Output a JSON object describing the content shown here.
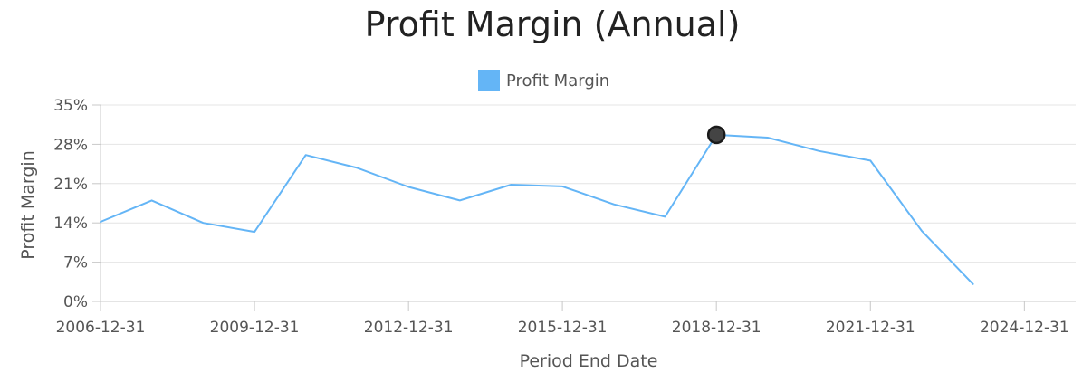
{
  "chart_data": {
    "type": "line",
    "title": "Profit Margin (Annual)",
    "xlabel": "Period End Date",
    "ylabel": "Profit Margin",
    "x_ticks": [
      "2006-12-31",
      "2009-12-31",
      "2012-12-31",
      "2015-12-31",
      "2018-12-31",
      "2021-12-31",
      "2024-12-31"
    ],
    "y_ticks": [
      "0%",
      "7%",
      "14%",
      "21%",
      "28%",
      "35%"
    ],
    "ylim": [
      0,
      35
    ],
    "xlim": [
      "2006-12-31",
      "2025-12-31"
    ],
    "grid": true,
    "legend_position": "top-center",
    "series": [
      {
        "name": "Profit Margin",
        "color": "#64b5f6",
        "points": [
          {
            "x": "2006-12-31",
            "y": 14.2
          },
          {
            "x": "2007-12-31",
            "y": 18.0
          },
          {
            "x": "2008-12-31",
            "y": 14.0
          },
          {
            "x": "2009-12-31",
            "y": 12.4
          },
          {
            "x": "2010-12-31",
            "y": 26.1
          },
          {
            "x": "2011-12-31",
            "y": 23.8
          },
          {
            "x": "2012-12-31",
            "y": 20.4
          },
          {
            "x": "2013-12-31",
            "y": 18.0
          },
          {
            "x": "2014-12-31",
            "y": 20.8
          },
          {
            "x": "2015-12-31",
            "y": 20.5
          },
          {
            "x": "2016-12-31",
            "y": 17.3
          },
          {
            "x": "2017-12-31",
            "y": 15.1
          },
          {
            "x": "2018-12-31",
            "y": 29.7
          },
          {
            "x": "2019-12-31",
            "y": 29.2
          },
          {
            "x": "2020-12-31",
            "y": 26.8
          },
          {
            "x": "2021-12-31",
            "y": 25.1
          },
          {
            "x": "2022-12-31",
            "y": 12.6
          },
          {
            "x": "2023-12-31",
            "y": 3.1
          }
        ]
      }
    ],
    "highlight": {
      "x": "2018-12-31",
      "y": 29.7
    }
  },
  "colors": {
    "title": "#222222",
    "text": "#555555",
    "grid": "#e4e4e4",
    "axis": "#c8c8c8",
    "marker": "#444444"
  }
}
